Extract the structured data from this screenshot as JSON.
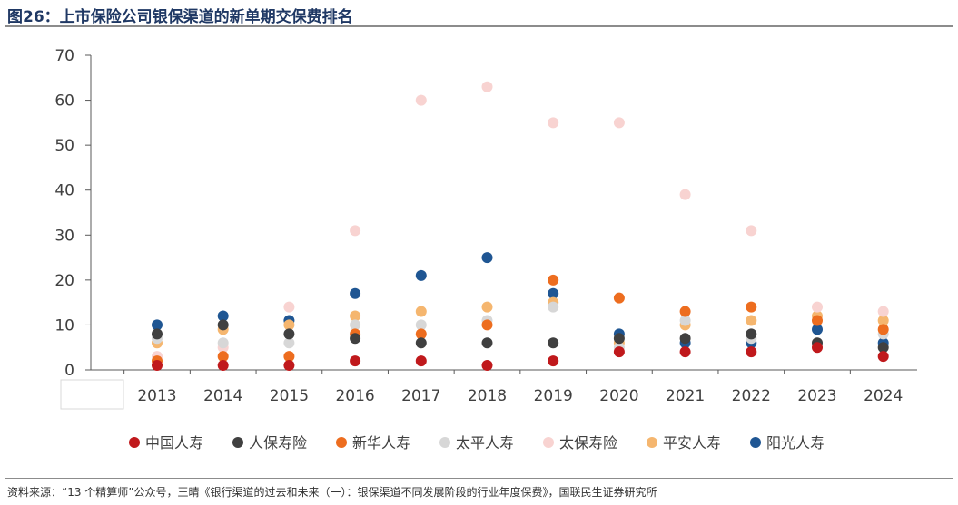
{
  "title": "图26：上市保险公司银保渠道的新单期交保费排名",
  "source": "资料来源：“13 个精算师”公众号，王晴《银行渠道的过去和未来（一）：银保渠道不同发展阶段的行业年度保费》，国联民生证券研究所",
  "chart_data": {
    "type": "scatter",
    "title": "",
    "xlabel": "",
    "ylabel": "",
    "ylim": [
      0,
      70
    ],
    "yticks": [
      "0",
      "10",
      "20",
      "30",
      "40",
      "50",
      "60",
      "70"
    ],
    "categories": [
      "2013",
      "2014",
      "2015",
      "2016",
      "2017",
      "2018",
      "2019",
      "2020",
      "2021",
      "2022",
      "2023",
      "2024"
    ],
    "legend_position": "bottom",
    "series": [
      {
        "name": "中国人寿",
        "color": "#c0191c",
        "values": [
          1,
          1,
          1,
          2,
          2,
          1,
          2,
          4,
          4,
          4,
          5,
          3
        ]
      },
      {
        "name": "人保寿险",
        "color": "#404040",
        "values": [
          8,
          10,
          8,
          7,
          6,
          6,
          6,
          7,
          7,
          8,
          6,
          5
        ]
      },
      {
        "name": "新华人寿",
        "color": "#ed6d1f",
        "values": [
          2,
          3,
          3,
          8,
          8,
          10,
          20,
          16,
          13,
          14,
          11,
          9
        ]
      },
      {
        "name": "太平人寿",
        "color": "#d7d7d7",
        "values": [
          7,
          6,
          6,
          10,
          10,
          11,
          14,
          5,
          11,
          7,
          6,
          8
        ]
      },
      {
        "name": "太保寿险",
        "color": "#f8d3d1",
        "values": [
          3,
          5,
          14,
          31,
          60,
          63,
          55,
          55,
          39,
          31,
          14,
          13
        ]
      },
      {
        "name": "平安人寿",
        "color": "#f5b66f",
        "values": [
          6,
          9,
          10,
          12,
          13,
          14,
          15,
          6,
          10,
          11,
          12,
          11
        ]
      },
      {
        "name": "阳光人寿",
        "color": "#1f5693",
        "values": [
          10,
          12,
          11,
          17,
          21,
          25,
          17,
          8,
          6,
          6,
          9,
          6
        ]
      }
    ]
  }
}
